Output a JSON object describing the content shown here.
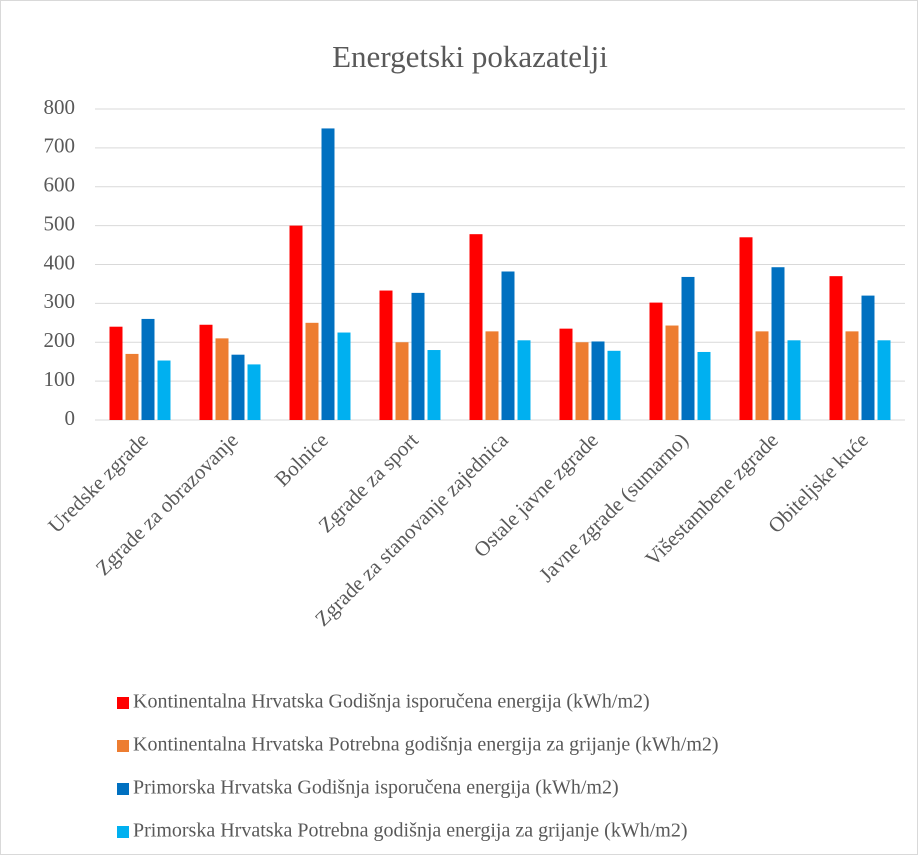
{
  "chart_data": {
    "type": "bar",
    "title": "Energetski pokazatelji",
    "categories": [
      "Uredske zgrade",
      "Zgrade za obrazovanje",
      "Bolnice",
      "Zgrade za sport",
      "Zgrade za stanovanje zajednica",
      "Ostale javne zgrade",
      "Javne zgrade (sumarno)",
      "Višestambene zgrade",
      "Obiteljske kuće"
    ],
    "series": [
      {
        "name": "Kontinentalna Hrvatska Godišnja isporučena energija (kWh/m2)",
        "color": "#ff0000",
        "values": [
          240,
          245,
          500,
          333,
          478,
          235,
          302,
          470,
          370
        ]
      },
      {
        "name": "Kontinentalna Hrvatska Potrebna godišnja energija za grijanje (kWh/m2)",
        "color": "#ed7d31",
        "values": [
          170,
          210,
          250,
          200,
          228,
          200,
          243,
          228,
          228
        ]
      },
      {
        "name": "Primorska Hrvatska Godišnja isporučena energija (kWh/m2)",
        "color": "#0070c0",
        "values": [
          260,
          168,
          750,
          327,
          382,
          202,
          368,
          393,
          320
        ]
      },
      {
        "name": "Primorska Hrvatska Potrebna godišnja energija za grijanje (kWh/m2)",
        "color": "#00b0f0",
        "values": [
          153,
          143,
          225,
          180,
          205,
          178,
          175,
          205,
          205
        ]
      }
    ],
    "ylim": [
      0,
      800
    ],
    "yticks": [
      0,
      100,
      200,
      300,
      400,
      500,
      600,
      700,
      800
    ],
    "grid": true,
    "legend": "bottom"
  }
}
